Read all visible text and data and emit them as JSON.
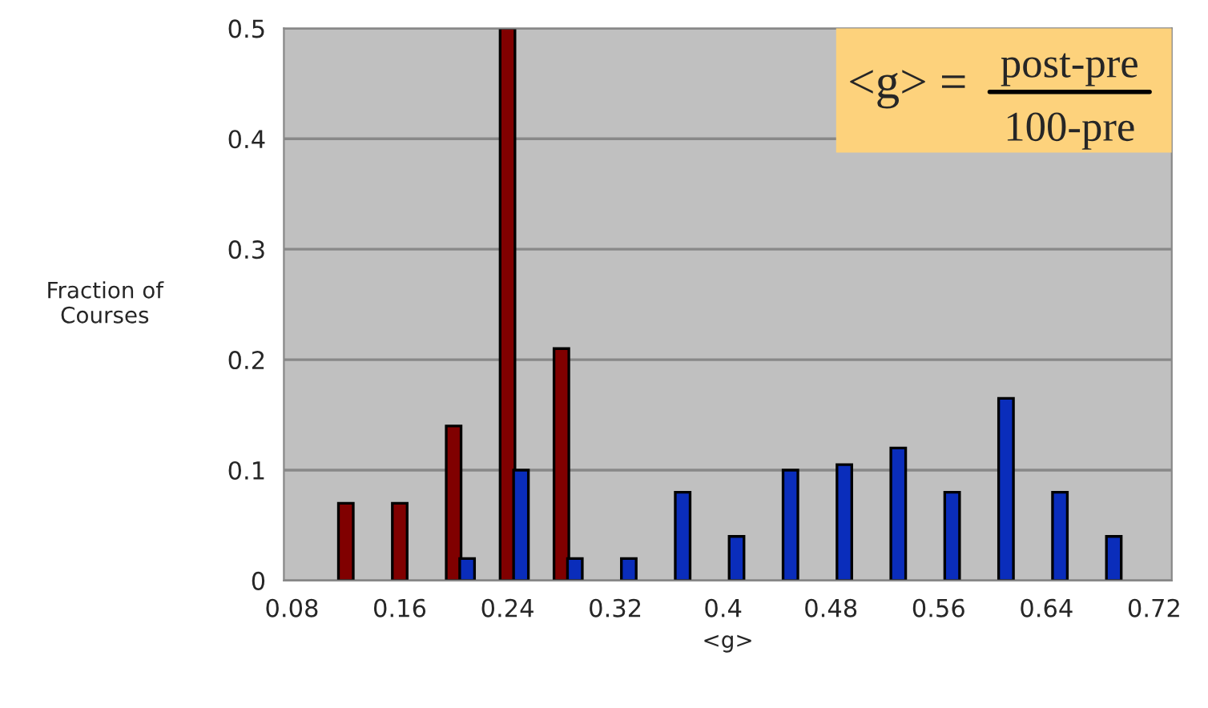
{
  "chart_data": {
    "type": "bar",
    "xlabel": "<g>",
    "ylabel": "Fraction of\nCourses",
    "annotations": [
      "<g> =",
      "post-pre",
      "100-pre"
    ],
    "series": [
      {
        "color": "#800000",
        "x": [
          0.12,
          0.16,
          0.2,
          0.24,
          0.28
        ],
        "values": [
          0.07,
          0.07,
          0.14,
          0.5,
          0.21
        ]
      },
      {
        "color": "#0a2dbb",
        "x": [
          0.21,
          0.25,
          0.29,
          0.33,
          0.37,
          0.41,
          0.45,
          0.49,
          0.53,
          0.57,
          0.61,
          0.65,
          0.69
        ],
        "values": [
          0.02,
          0.1,
          0.02,
          0.02,
          0.08,
          0.04,
          0.1,
          0.105,
          0.12,
          0.08,
          0.165,
          0.08,
          0.04
        ]
      }
    ],
    "xlim": [
      0.074,
      0.733
    ],
    "xticks": [
      0.08,
      0.16,
      0.24,
      0.32,
      0.4,
      0.48,
      0.56,
      0.64,
      0.72
    ],
    "ylim": [
      0,
      0.5
    ],
    "yticks": [
      0,
      0.1,
      0.2,
      0.3,
      0.4,
      0.5
    ],
    "grid": "y",
    "legend": false
  }
}
